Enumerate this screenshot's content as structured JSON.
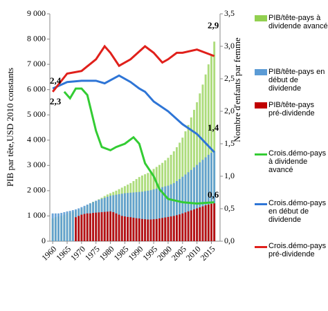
{
  "chart_data": {
    "type": "bar",
    "x": [
      1960,
      1961,
      1962,
      1963,
      1964,
      1965,
      1966,
      1967,
      1968,
      1969,
      1970,
      1971,
      1972,
      1973,
      1974,
      1975,
      1976,
      1977,
      1978,
      1979,
      1980,
      1981,
      1982,
      1983,
      1984,
      1985,
      1986,
      1987,
      1988,
      1989,
      1990,
      1991,
      1992,
      1993,
      1994,
      1995,
      1996,
      1997,
      1998,
      1999,
      2000,
      2001,
      2002,
      2003,
      2004,
      2005,
      2006,
      2007,
      2008,
      2009,
      2010,
      2011,
      2012,
      2013,
      2014,
      2015,
      2016
    ],
    "y_label": "PIB par tête,USD 2010 constants",
    "y2_label": "Nombre d'enfants par femme",
    "xlim": [
      1959,
      2018
    ],
    "xticks": [
      1960,
      1965,
      1970,
      1975,
      1980,
      1985,
      1990,
      1995,
      2000,
      2005,
      2010,
      2015
    ],
    "ylim": [
      0,
      9000
    ],
    "yticks": [
      0,
      {
        "value": 1000,
        "label": "1 000"
      },
      {
        "value": 2000,
        "label": "2 000"
      },
      {
        "value": 3000,
        "label": "3 000"
      },
      {
        "value": 4000,
        "label": "4 000"
      },
      {
        "value": 5000,
        "label": "5 000"
      },
      {
        "value": 6000,
        "label": "6 000"
      },
      {
        "value": 7000,
        "label": "7 000"
      },
      {
        "value": 8000,
        "label": "8 000"
      },
      {
        "value": 9000,
        "label": "9 000"
      }
    ],
    "y2lim": [
      0,
      3.5
    ],
    "y2ticks": [
      {
        "value": 0,
        "label": "0,0"
      },
      {
        "value": 0.5,
        "label": "0,5"
      },
      {
        "value": 1,
        "label": "1,0"
      },
      {
        "value": 1.5,
        "label": "1,5"
      },
      {
        "value": 2,
        "label": "2,0"
      },
      {
        "value": 2.5,
        "label": "2,5"
      },
      {
        "value": 3,
        "label": "3,0"
      },
      {
        "value": 3.5,
        "label": "3,5"
      }
    ],
    "series": [
      {
        "name": "PIB/tête-pays à dividende avancé",
        "type": "bar",
        "color": "#92d050",
        "values": [
          900,
          950,
          980,
          1000,
          1050,
          1100,
          1130,
          1160,
          1200,
          1250,
          1300,
          1350,
          1420,
          1500,
          1560,
          1600,
          1660,
          1720,
          1790,
          1850,
          1900,
          1950,
          2000,
          2060,
          2120,
          2180,
          2240,
          2300,
          2380,
          2460,
          2540,
          2600,
          2650,
          2700,
          2780,
          2860,
          2940,
          3020,
          3100,
          3200,
          3300,
          3420,
          3560,
          3720,
          3900,
          4100,
          4350,
          4600,
          4900,
          5200,
          5500,
          5850,
          6200,
          6600,
          7000,
          7400,
          7900
        ]
      },
      {
        "name": "PIB/tête-pays en début de dividende",
        "type": "bar",
        "color": "#5b9bd5",
        "values": [
          1100,
          1100,
          1100,
          1120,
          1150,
          1180,
          1200,
          1230,
          1260,
          1300,
          1350,
          1400,
          1450,
          1500,
          1550,
          1600,
          1640,
          1680,
          1720,
          1760,
          1800,
          1820,
          1840,
          1860,
          1880,
          1900,
          1910,
          1920,
          1930,
          1940,
          1950,
          1960,
          1980,
          2000,
          2020,
          2050,
          2080,
          2110,
          2140,
          2170,
          2200,
          2250,
          2300,
          2380,
          2460,
          2550,
          2640,
          2730,
          2820,
          2920,
          3020,
          3120,
          3220,
          3320,
          3420,
          3500,
          3550
        ]
      },
      {
        "name": "PIB/tête-pays pré-dividende",
        "type": "bar",
        "color": "#c00000",
        "values": [
          null,
          null,
          null,
          null,
          null,
          null,
          null,
          null,
          950,
          1000,
          1050,
          1080,
          1100,
          1100,
          1120,
          1130,
          1140,
          1150,
          1160,
          1170,
          1180,
          1150,
          1100,
          1050,
          1000,
          980,
          960,
          950,
          930,
          910,
          900,
          880,
          870,
          860,
          860,
          870,
          880,
          900,
          920,
          940,
          960,
          980,
          1000,
          1030,
          1060,
          1100,
          1140,
          1180,
          1220,
          1260,
          1300,
          1340,
          1380,
          1420,
          1450,
          1480,
          1500
        ]
      },
      {
        "name": "Crois.démo-pays à dividende avancé",
        "type": "line",
        "axis": "y2",
        "color": "#33cc33",
        "x": [
          1964,
          1966,
          1968,
          1970,
          1972,
          1975,
          1977,
          1980,
          1982,
          1985,
          1988,
          1990,
          1992,
          1995,
          1997,
          2000,
          2005,
          2010,
          2016
        ],
        "values": [
          2.3,
          2.2,
          2.35,
          2.35,
          2.25,
          1.7,
          1.45,
          1.4,
          1.45,
          1.5,
          1.6,
          1.5,
          1.2,
          1.0,
          0.8,
          0.65,
          0.6,
          0.58,
          0.6
        ]
      },
      {
        "name": "Crois.démo-pays en début de dividende",
        "type": "line",
        "axis": "y2",
        "color": "#2e75d6",
        "x": [
          1960,
          1965,
          1970,
          1975,
          1978,
          1983,
          1987,
          1990,
          1992,
          1995,
          2000,
          2005,
          2010,
          2016
        ],
        "values": [
          2.35,
          2.45,
          2.47,
          2.47,
          2.43,
          2.55,
          2.45,
          2.35,
          2.3,
          2.15,
          2.0,
          1.8,
          1.65,
          1.37
        ]
      },
      {
        "name": "Crois.démo-pays pré-dividende",
        "type": "line",
        "axis": "y2",
        "color": "#e0201b",
        "x": [
          1960,
          1965,
          1970,
          1975,
          1978,
          1980,
          1983,
          1987,
          1992,
          1995,
          1998,
          2000,
          2003,
          2005,
          2010,
          2016
        ],
        "values": [
          2.3,
          2.58,
          2.62,
          2.8,
          3.0,
          2.9,
          2.7,
          2.8,
          3.0,
          2.9,
          2.75,
          2.8,
          2.9,
          2.9,
          2.95,
          2.85
        ]
      }
    ],
    "annotations": [
      "2,4",
      "2,3",
      "1,4",
      "0,6",
      "2,9"
    ]
  }
}
